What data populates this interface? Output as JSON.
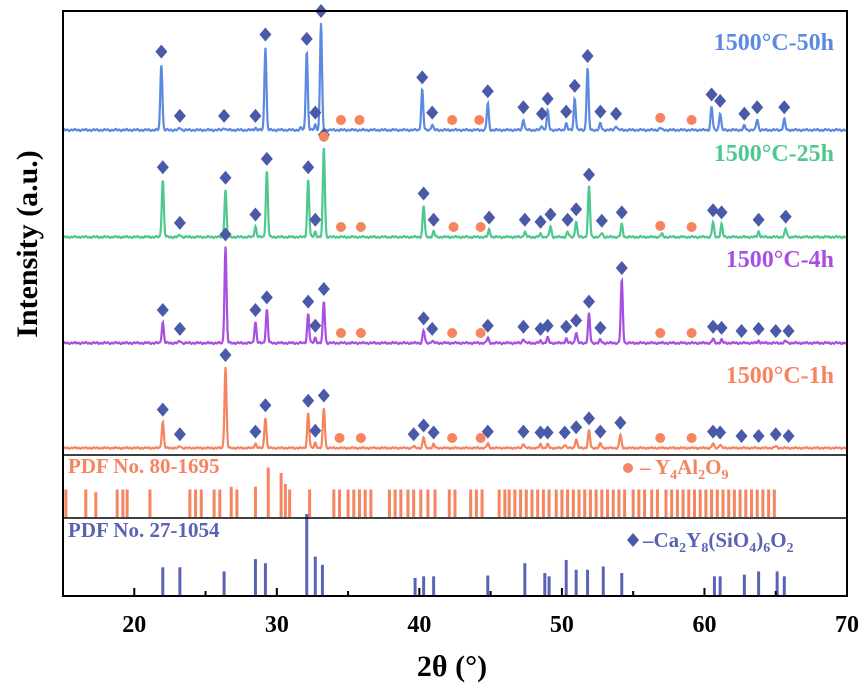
{
  "chart_data": {
    "type": "line",
    "ylabel": "Intensity (a.u.)",
    "xlabel": "2θ (°)",
    "xlim": [
      15,
      70
    ],
    "x_ticks": [
      20,
      30,
      40,
      50,
      60,
      70
    ],
    "x_tick_labels": [
      "20",
      "30",
      "40",
      "50",
      "60",
      "70"
    ],
    "series": [
      {
        "name": "1500°C-50h",
        "color": "#5b8ae0",
        "peaks": [
          {
            "x": 21.9,
            "h": 0.62
          },
          {
            "x": 23.2,
            "h": 0.02
          },
          {
            "x": 26.3,
            "h": 0.02
          },
          {
            "x": 28.5,
            "h": 0.02
          },
          {
            "x": 29.2,
            "h": 0.78
          },
          {
            "x": 31.7,
            "h": 0.02
          },
          {
            "x": 32.1,
            "h": 0.74
          },
          {
            "x": 32.7,
            "h": 0.05
          },
          {
            "x": 33.1,
            "h": 1.0
          },
          {
            "x": 40.2,
            "h": 0.38
          },
          {
            "x": 40.9,
            "h": 0.05
          },
          {
            "x": 44.8,
            "h": 0.25
          },
          {
            "x": 47.3,
            "h": 0.1
          },
          {
            "x": 48.6,
            "h": 0.04
          },
          {
            "x": 49.0,
            "h": 0.18
          },
          {
            "x": 50.3,
            "h": 0.06
          },
          {
            "x": 50.9,
            "h": 0.3
          },
          {
            "x": 51.8,
            "h": 0.58
          },
          {
            "x": 52.7,
            "h": 0.06
          },
          {
            "x": 53.8,
            "h": 0.04
          },
          {
            "x": 56.9,
            "h": 0.02
          },
          {
            "x": 60.5,
            "h": 0.22
          },
          {
            "x": 61.1,
            "h": 0.16
          },
          {
            "x": 62.8,
            "h": 0.04
          },
          {
            "x": 63.7,
            "h": 0.1
          },
          {
            "x": 65.6,
            "h": 0.1
          }
        ],
        "markers": {
          "diamond": [
            21.9,
            23.2,
            26.3,
            28.5,
            29.2,
            32.1,
            32.7,
            33.1,
            40.2,
            40.9,
            44.8,
            47.3,
            48.6,
            49.0,
            50.3,
            50.9,
            51.8,
            52.7,
            53.8,
            60.5,
            61.1,
            62.8,
            63.7,
            65.6
          ],
          "circle": [
            34.5,
            35.8,
            42.3,
            44.2,
            56.9,
            59.1
          ]
        }
      },
      {
        "name": "1500°C-25h",
        "color": "#4dc88e",
        "peaks": [
          {
            "x": 22.0,
            "h": 0.55
          },
          {
            "x": 23.2,
            "h": 0.02
          },
          {
            "x": 26.4,
            "h": 0.45
          },
          {
            "x": 28.5,
            "h": 0.1
          },
          {
            "x": 29.3,
            "h": 0.63
          },
          {
            "x": 32.2,
            "h": 0.55
          },
          {
            "x": 32.7,
            "h": 0.05
          },
          {
            "x": 33.3,
            "h": 0.86
          },
          {
            "x": 40.3,
            "h": 0.3
          },
          {
            "x": 41.0,
            "h": 0.05
          },
          {
            "x": 44.9,
            "h": 0.07
          },
          {
            "x": 47.4,
            "h": 0.05
          },
          {
            "x": 48.5,
            "h": 0.03
          },
          {
            "x": 49.2,
            "h": 0.1
          },
          {
            "x": 50.4,
            "h": 0.05
          },
          {
            "x": 51.0,
            "h": 0.15
          },
          {
            "x": 51.9,
            "h": 0.48
          },
          {
            "x": 52.8,
            "h": 0.04
          },
          {
            "x": 54.2,
            "h": 0.12
          },
          {
            "x": 57.0,
            "h": 0.03
          },
          {
            "x": 60.6,
            "h": 0.14
          },
          {
            "x": 61.2,
            "h": 0.12
          },
          {
            "x": 63.8,
            "h": 0.05
          },
          {
            "x": 65.7,
            "h": 0.08
          }
        ],
        "markers": {
          "diamond": [
            22.0,
            23.2,
            26.4,
            28.5,
            29.3,
            32.2,
            32.7,
            33.3,
            40.3,
            41.0,
            44.9,
            47.4,
            48.5,
            49.2,
            50.4,
            51.0,
            51.9,
            52.8,
            54.2,
            60.6,
            61.2,
            63.8,
            65.7
          ],
          "circle": [
            33.3,
            34.5,
            35.9,
            42.4,
            44.3,
            56.9,
            59.1
          ]
        }
      },
      {
        "name": "1500°C-4h",
        "color": "#a64fe0",
        "peaks": [
          {
            "x": 22.0,
            "h": 0.2
          },
          {
            "x": 23.2,
            "h": 0.02
          },
          {
            "x": 26.4,
            "h": 0.92
          },
          {
            "x": 28.5,
            "h": 0.2
          },
          {
            "x": 29.3,
            "h": 0.32
          },
          {
            "x": 32.2,
            "h": 0.28
          },
          {
            "x": 32.7,
            "h": 0.05
          },
          {
            "x": 33.3,
            "h": 0.4
          },
          {
            "x": 40.3,
            "h": 0.12
          },
          {
            "x": 40.9,
            "h": 0.02
          },
          {
            "x": 44.8,
            "h": 0.05
          },
          {
            "x": 47.3,
            "h": 0.04
          },
          {
            "x": 48.5,
            "h": 0.02
          },
          {
            "x": 49.0,
            "h": 0.05
          },
          {
            "x": 50.3,
            "h": 0.04
          },
          {
            "x": 51.0,
            "h": 0.1
          },
          {
            "x": 51.9,
            "h": 0.28
          },
          {
            "x": 52.7,
            "h": 0.03
          },
          {
            "x": 54.2,
            "h": 0.6
          },
          {
            "x": 60.6,
            "h": 0.04
          },
          {
            "x": 61.2,
            "h": 0.03
          },
          {
            "x": 63.8,
            "h": 0.02
          },
          {
            "x": 65.7,
            "h": 0.02
          }
        ],
        "markers": {
          "diamond": [
            22.0,
            23.2,
            26.4,
            28.5,
            29.3,
            32.2,
            32.7,
            33.3,
            40.3,
            40.9,
            44.8,
            47.3,
            48.5,
            49.0,
            50.3,
            51.0,
            51.9,
            52.7,
            54.2,
            60.6,
            61.2,
            62.6,
            63.8,
            65.0,
            65.9
          ],
          "circle": [
            34.5,
            35.9,
            42.3,
            44.3,
            56.9,
            59.1
          ]
        }
      },
      {
        "name": "1500°C-1h",
        "color": "#f5845f",
        "peaks": [
          {
            "x": 22.0,
            "h": 0.3
          },
          {
            "x": 23.2,
            "h": 0.02
          },
          {
            "x": 26.4,
            "h": 0.92
          },
          {
            "x": 28.5,
            "h": 0.05
          },
          {
            "x": 29.2,
            "h": 0.35
          },
          {
            "x": 32.2,
            "h": 0.4
          },
          {
            "x": 32.7,
            "h": 0.06
          },
          {
            "x": 33.3,
            "h": 0.46
          },
          {
            "x": 39.6,
            "h": 0.02
          },
          {
            "x": 40.3,
            "h": 0.12
          },
          {
            "x": 41.0,
            "h": 0.04
          },
          {
            "x": 44.8,
            "h": 0.05
          },
          {
            "x": 47.3,
            "h": 0.05
          },
          {
            "x": 48.5,
            "h": 0.04
          },
          {
            "x": 49.0,
            "h": 0.04
          },
          {
            "x": 50.2,
            "h": 0.04
          },
          {
            "x": 51.0,
            "h": 0.1
          },
          {
            "x": 51.9,
            "h": 0.2
          },
          {
            "x": 52.7,
            "h": 0.05
          },
          {
            "x": 54.1,
            "h": 0.15
          },
          {
            "x": 60.6,
            "h": 0.05
          },
          {
            "x": 61.1,
            "h": 0.04
          },
          {
            "x": 65.0,
            "h": 0.02
          }
        ],
        "markers": {
          "diamond": [
            22.0,
            23.2,
            26.4,
            28.5,
            29.2,
            32.2,
            32.7,
            33.3,
            39.6,
            40.3,
            41.0,
            44.8,
            47.3,
            48.5,
            49.0,
            50.2,
            51.0,
            51.9,
            52.7,
            54.1,
            60.6,
            61.1,
            62.6,
            63.8,
            65.0,
            65.9
          ],
          "circle": [
            34.4,
            35.9,
            42.3,
            44.3,
            56.9,
            59.1
          ]
        }
      }
    ],
    "reference_patterns": [
      {
        "label": "PDF No. 80-1695",
        "phase_label": "Y4Al2O9",
        "phase_html_parts": [
          "– Y",
          "4",
          "Al",
          "2",
          "O",
          "9"
        ],
        "marker": "circle",
        "color": "#f5845f",
        "lines": [
          {
            "x": 15.2,
            "h": 0.5
          },
          {
            "x": 16.6,
            "h": 0.5
          },
          {
            "x": 17.3,
            "h": 0.45
          },
          {
            "x": 18.8,
            "h": 0.5
          },
          {
            "x": 19.2,
            "h": 0.5
          },
          {
            "x": 19.5,
            "h": 0.5
          },
          {
            "x": 21.1,
            "h": 0.5
          },
          {
            "x": 23.9,
            "h": 0.5
          },
          {
            "x": 24.3,
            "h": 0.5
          },
          {
            "x": 24.7,
            "h": 0.5
          },
          {
            "x": 25.6,
            "h": 0.5
          },
          {
            "x": 26.0,
            "h": 0.5
          },
          {
            "x": 26.8,
            "h": 0.55
          },
          {
            "x": 27.2,
            "h": 0.5
          },
          {
            "x": 28.5,
            "h": 0.55
          },
          {
            "x": 29.4,
            "h": 0.9
          },
          {
            "x": 30.3,
            "h": 0.8
          },
          {
            "x": 30.6,
            "h": 0.6
          },
          {
            "x": 30.9,
            "h": 0.5
          },
          {
            "x": 32.3,
            "h": 0.5
          },
          {
            "x": 34.0,
            "h": 0.5
          },
          {
            "x": 34.4,
            "h": 0.5
          },
          {
            "x": 35.0,
            "h": 0.5
          },
          {
            "x": 35.4,
            "h": 0.5
          },
          {
            "x": 35.8,
            "h": 0.5
          },
          {
            "x": 36.2,
            "h": 0.5
          },
          {
            "x": 36.6,
            "h": 0.5
          },
          {
            "x": 37.9,
            "h": 0.5
          },
          {
            "x": 38.3,
            "h": 0.5
          },
          {
            "x": 38.7,
            "h": 0.5
          },
          {
            "x": 39.2,
            "h": 0.5
          },
          {
            "x": 39.6,
            "h": 0.5
          },
          {
            "x": 40.1,
            "h": 0.5
          },
          {
            "x": 40.6,
            "h": 0.5
          },
          {
            "x": 41.1,
            "h": 0.5
          },
          {
            "x": 42.1,
            "h": 0.5
          },
          {
            "x": 42.5,
            "h": 0.5
          },
          {
            "x": 43.6,
            "h": 0.5
          },
          {
            "x": 44.0,
            "h": 0.5
          },
          {
            "x": 44.4,
            "h": 0.5
          },
          {
            "x": 45.6,
            "h": 0.5
          },
          {
            "x": 46.0,
            "h": 0.5
          },
          {
            "x": 46.3,
            "h": 0.5
          },
          {
            "x": 46.7,
            "h": 0.5
          },
          {
            "x": 47.1,
            "h": 0.5
          },
          {
            "x": 47.5,
            "h": 0.5
          },
          {
            "x": 47.9,
            "h": 0.5
          },
          {
            "x": 48.3,
            "h": 0.5
          },
          {
            "x": 48.7,
            "h": 0.5
          },
          {
            "x": 49.1,
            "h": 0.5
          },
          {
            "x": 49.6,
            "h": 0.5
          },
          {
            "x": 50.0,
            "h": 0.5
          },
          {
            "x": 50.4,
            "h": 0.5
          },
          {
            "x": 50.8,
            "h": 0.5
          },
          {
            "x": 51.2,
            "h": 0.5
          },
          {
            "x": 51.6,
            "h": 0.5
          },
          {
            "x": 52.0,
            "h": 0.5
          },
          {
            "x": 52.4,
            "h": 0.5
          },
          {
            "x": 52.8,
            "h": 0.5
          },
          {
            "x": 53.2,
            "h": 0.5
          },
          {
            "x": 53.6,
            "h": 0.5
          },
          {
            "x": 54.0,
            "h": 0.5
          },
          {
            "x": 54.4,
            "h": 0.5
          },
          {
            "x": 55.0,
            "h": 0.5
          },
          {
            "x": 55.4,
            "h": 0.5
          },
          {
            "x": 55.8,
            "h": 0.5
          },
          {
            "x": 56.3,
            "h": 0.5
          },
          {
            "x": 56.7,
            "h": 0.5
          },
          {
            "x": 57.3,
            "h": 0.5
          },
          {
            "x": 57.7,
            "h": 0.5
          },
          {
            "x": 58.1,
            "h": 0.5
          },
          {
            "x": 58.5,
            "h": 0.5
          },
          {
            "x": 58.9,
            "h": 0.5
          },
          {
            "x": 59.3,
            "h": 0.5
          },
          {
            "x": 59.7,
            "h": 0.5
          },
          {
            "x": 60.1,
            "h": 0.5
          },
          {
            "x": 60.5,
            "h": 0.5
          },
          {
            "x": 60.9,
            "h": 0.5
          },
          {
            "x": 61.3,
            "h": 0.5
          },
          {
            "x": 61.7,
            "h": 0.5
          },
          {
            "x": 62.1,
            "h": 0.5
          },
          {
            "x": 62.5,
            "h": 0.5
          },
          {
            "x": 62.9,
            "h": 0.5
          },
          {
            "x": 63.3,
            "h": 0.5
          },
          {
            "x": 63.7,
            "h": 0.5
          },
          {
            "x": 64.1,
            "h": 0.5
          },
          {
            "x": 64.5,
            "h": 0.5
          },
          {
            "x": 64.9,
            "h": 0.5
          }
        ]
      },
      {
        "label": "PDF No. 27-1054",
        "phase_label": "Ca2Y8(SiO4)6O2",
        "phase_html_parts": [
          "–Ca",
          "2",
          "Y",
          "8",
          "(SiO",
          "4",
          ")",
          "6",
          "O",
          "2"
        ],
        "marker": "diamond",
        "color": "#5a63b3",
        "lines": [
          {
            "x": 22.0,
            "h": 0.35
          },
          {
            "x": 23.2,
            "h": 0.35
          },
          {
            "x": 26.3,
            "h": 0.3
          },
          {
            "x": 28.5,
            "h": 0.45
          },
          {
            "x": 29.2,
            "h": 0.4
          },
          {
            "x": 32.1,
            "h": 1.0
          },
          {
            "x": 32.7,
            "h": 0.48
          },
          {
            "x": 33.2,
            "h": 0.38
          },
          {
            "x": 39.7,
            "h": 0.22
          },
          {
            "x": 40.3,
            "h": 0.24
          },
          {
            "x": 41.0,
            "h": 0.24
          },
          {
            "x": 44.8,
            "h": 0.25
          },
          {
            "x": 47.4,
            "h": 0.4
          },
          {
            "x": 48.8,
            "h": 0.28
          },
          {
            "x": 49.1,
            "h": 0.24
          },
          {
            "x": 50.3,
            "h": 0.44
          },
          {
            "x": 51.0,
            "h": 0.32
          },
          {
            "x": 51.8,
            "h": 0.32
          },
          {
            "x": 52.9,
            "h": 0.36
          },
          {
            "x": 54.2,
            "h": 0.28
          },
          {
            "x": 60.7,
            "h": 0.24
          },
          {
            "x": 61.1,
            "h": 0.24
          },
          {
            "x": 62.8,
            "h": 0.26
          },
          {
            "x": 63.8,
            "h": 0.3
          },
          {
            "x": 65.1,
            "h": 0.3
          },
          {
            "x": 65.6,
            "h": 0.24
          }
        ]
      }
    ]
  }
}
